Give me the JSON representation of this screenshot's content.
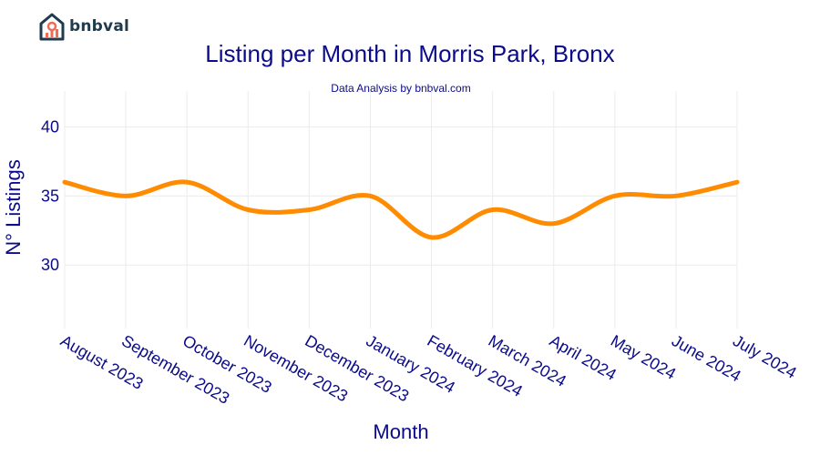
{
  "brand": {
    "logo_text": "bnbval"
  },
  "chart_data": {
    "type": "line",
    "title": "Listing per Month in Morris Park, Bronx",
    "subtitle": "Data Analysis by bnbval.com",
    "xlabel": "Month",
    "ylabel": "N° Listings",
    "categories": [
      "August 2023",
      "September 2023",
      "October 2023",
      "November 2023",
      "December 2023",
      "January 2024",
      "February 2024",
      "March 2024",
      "April 2024",
      "May 2024",
      "June 2024",
      "July 2024"
    ],
    "series": [
      {
        "name": "Listings",
        "values": [
          36,
          35,
          36,
          34,
          34,
          35,
          32,
          34,
          33,
          35,
          35,
          36
        ]
      }
    ],
    "ylim": [
      25.4,
      42.6
    ],
    "yticks": [
      30,
      35,
      40
    ],
    "grid": true,
    "line_color": "#ff8c00"
  }
}
